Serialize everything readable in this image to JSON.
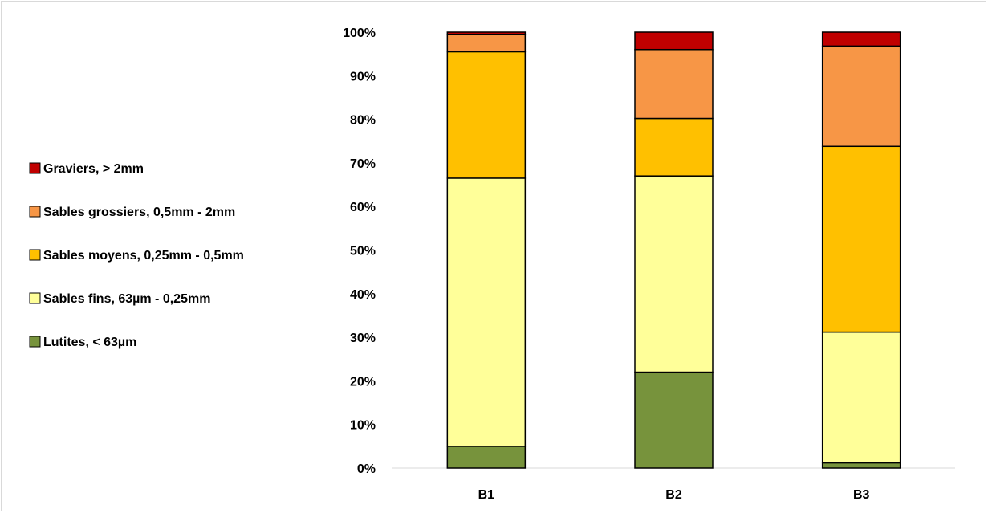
{
  "chart_data": {
    "type": "bar",
    "stacked": true,
    "percent_stacked": true,
    "categories": [
      "B1",
      "B2",
      "B3"
    ],
    "series": [
      {
        "name": "Lutites, < 63µm",
        "color": "#77933c",
        "values": [
          5.0,
          22.0,
          1.2
        ]
      },
      {
        "name": "Sables fins, 63µm - 0,25mm",
        "color": "#ffff99",
        "values": [
          61.5,
          45.0,
          30.0
        ]
      },
      {
        "name": "Sables moyens, 0,25mm - 0,5mm",
        "color": "#ffc000",
        "values": [
          29.0,
          13.2,
          42.6
        ]
      },
      {
        "name": "Sables grossiers, 0,5mm - 2mm",
        "color": "#f79646",
        "values": [
          4.0,
          15.8,
          23.0
        ]
      },
      {
        "name": "Graviers, > 2mm",
        "color": "#c00000",
        "values": [
          0.5,
          4.0,
          3.2
        ]
      }
    ],
    "ylim": [
      0,
      100
    ],
    "y_ticks": [
      "0%",
      "10%",
      "20%",
      "30%",
      "40%",
      "50%",
      "60%",
      "70%",
      "80%",
      "90%",
      "100%"
    ],
    "grid": false,
    "legend_position": "left",
    "legend_order": "reverse"
  }
}
